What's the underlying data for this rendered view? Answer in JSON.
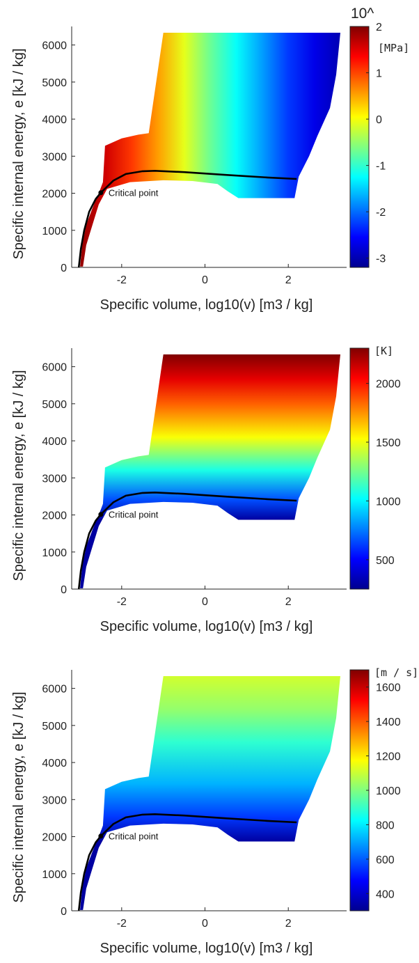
{
  "chart_data": [
    {
      "type": "heatmap",
      "title": "",
      "xlabel": "Specific volume, log10(v) [m3 / kg]",
      "ylabel": "Specific internal energy, e [kJ / kg]",
      "xlim": [
        -3.2,
        3.4
      ],
      "ylim": [
        0,
        6500
      ],
      "x_ticks": [
        "-2",
        "0",
        "2"
      ],
      "y_ticks": [
        "0",
        "1000",
        "2000",
        "3000",
        "4000",
        "5000",
        "6000"
      ],
      "colorbar": {
        "label": "[MPa]",
        "exponent_label": "10^",
        "ticks": [
          "2",
          "1",
          "0",
          "-1",
          "-2",
          "-3"
        ],
        "range": [
          -3.2,
          2
        ],
        "gradient": "x"
      },
      "annotation": {
        "text": "Critical point",
        "x": -2.5,
        "y": 2015
      }
    },
    {
      "type": "heatmap",
      "title": "",
      "xlabel": "Specific volume, log10(v) [m3 / kg]",
      "ylabel": "Specific internal energy, e [kJ / kg]",
      "xlim": [
        -3.2,
        3.4
      ],
      "ylim": [
        0,
        6500
      ],
      "x_ticks": [
        "-2",
        "0",
        "2"
      ],
      "y_ticks": [
        "0",
        "1000",
        "2000",
        "3000",
        "4000",
        "5000",
        "6000"
      ],
      "colorbar": {
        "label": "[K]",
        "ticks": [
          "2000",
          "1500",
          "1000",
          "500"
        ],
        "range": [
          250,
          2300
        ],
        "gradient": "y"
      },
      "annotation": {
        "text": "Critical point",
        "x": -2.5,
        "y": 2015
      }
    },
    {
      "type": "heatmap",
      "title": "",
      "xlabel": "Specific volume, log10(v) [m3 / kg]",
      "ylabel": "Specific internal energy, e [kJ / kg]",
      "xlim": [
        -3.2,
        3.4
      ],
      "ylim": [
        0,
        6500
      ],
      "x_ticks": [
        "-2",
        "0",
        "2"
      ],
      "y_ticks": [
        "0",
        "1000",
        "2000",
        "3000",
        "4000",
        "5000",
        "6000"
      ],
      "colorbar": {
        "label": "[m / s]",
        "ticks": [
          "1600",
          "1400",
          "1200",
          "1000",
          "800",
          "600",
          "400"
        ],
        "range": [
          300,
          1700
        ],
        "gradient": "y"
      },
      "annotation": {
        "text": "Critical point",
        "x": -2.5,
        "y": 2015
      }
    }
  ],
  "colors": {
    "saturation_curve": "#000000",
    "colormap": "jet"
  }
}
